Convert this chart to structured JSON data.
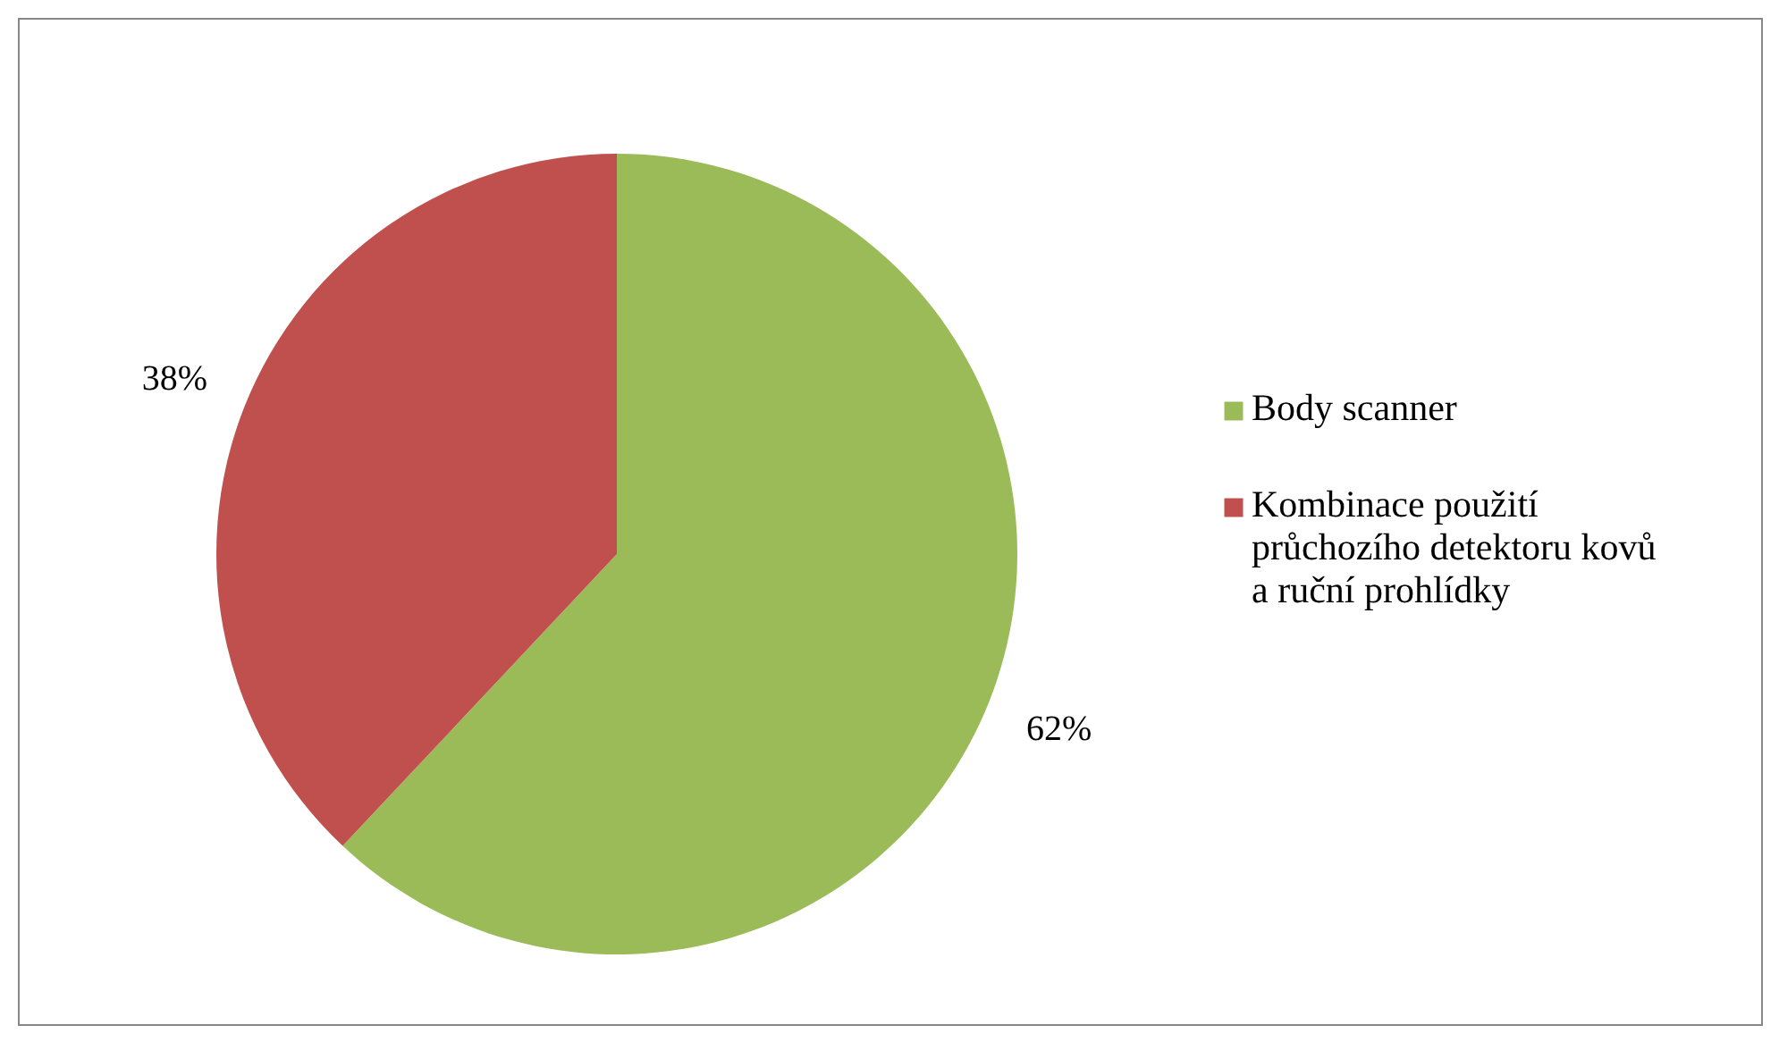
{
  "chart_data": {
    "type": "pie",
    "categories": [
      "Body scanner",
      "Kombinace použití průchozího detektoru kovů a ruční prohlídky"
    ],
    "values": [
      62,
      38
    ],
    "colors": [
      "#9bbb59",
      "#c0504d"
    ],
    "value_labels": [
      "62%",
      "38%"
    ],
    "legend": "right"
  }
}
